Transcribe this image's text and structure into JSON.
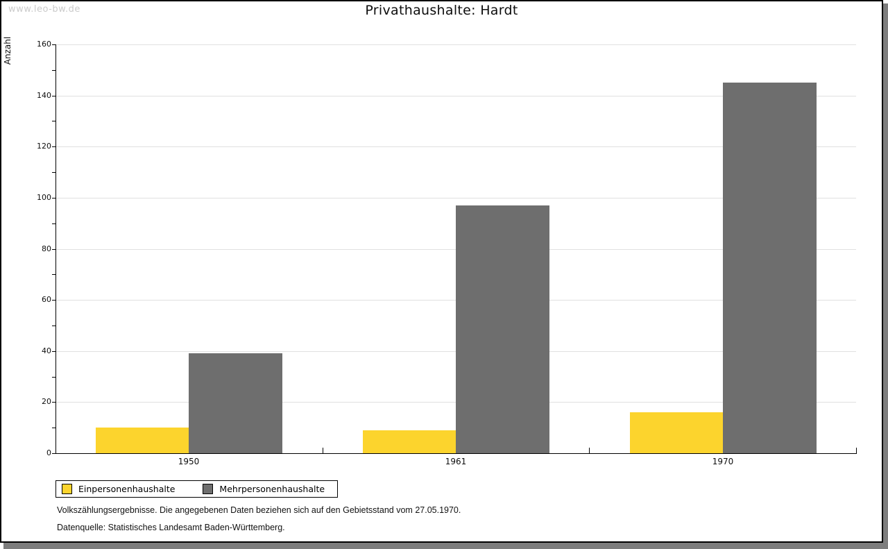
{
  "watermark": "www.leo-bw.de",
  "title": "Privathaushalte: Hardt",
  "y_axis_label": "Anzahl",
  "footer": {
    "line1": "Volkszählungsergebnisse. Die angegebenen Daten beziehen sich auf den Gebietsstand vom 27.05.1970.",
    "line2": "Datenquelle: Statistisches Landesamt Baden-Württemberg."
  },
  "chart_data": {
    "type": "bar",
    "title": "Privathaushalte: Hardt",
    "categories": [
      "1950",
      "1961",
      "1970"
    ],
    "series": [
      {
        "name": "Einpersonenhaushalte",
        "color": "#FCD42D",
        "values": [
          10,
          9,
          16
        ]
      },
      {
        "name": "Mehrpersonenhaushalte",
        "color": "#6E6E6E",
        "values": [
          39,
          97,
          145
        ]
      }
    ],
    "xlabel": "",
    "ylabel": "Anzahl",
    "ylim": [
      0,
      160
    ],
    "y_major_step": 20,
    "y_minor_step": 10,
    "grid": true,
    "gridline_color": "#e0e0e0",
    "legend_position": "bottom-left"
  }
}
